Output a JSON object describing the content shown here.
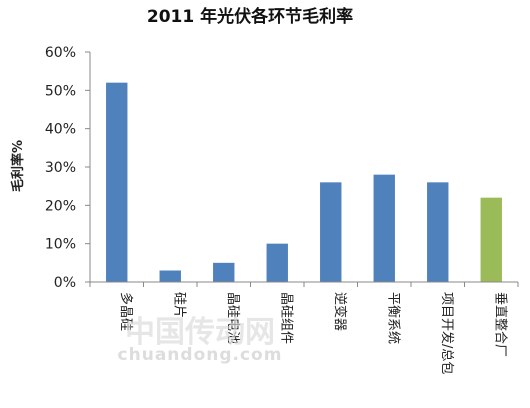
{
  "chart_data": {
    "type": "bar",
    "title": "2011 年光伏各环节毛利率",
    "ylabel": "毛利率%",
    "xlabel": "",
    "ylim": [
      0,
      60
    ],
    "yticks": [
      "0%",
      "10%",
      "20%",
      "30%",
      "40%",
      "50%",
      "60%"
    ],
    "categories": [
      "多晶硅",
      "硅片",
      "晶硅电池",
      "晶硅组件",
      "逆变器",
      "平衡系统",
      "项目开发/总包",
      "垂直整合厂"
    ],
    "values": [
      52,
      3,
      5,
      10,
      26,
      28,
      26,
      22
    ],
    "colors": [
      "#4f81bd",
      "#4f81bd",
      "#4f81bd",
      "#4f81bd",
      "#4f81bd",
      "#4f81bd",
      "#4f81bd",
      "#9bbb59"
    ],
    "grid": false,
    "legend": "none"
  },
  "watermark": {
    "text_cn": "中国传动网",
    "text_en": "chuandong.com"
  }
}
